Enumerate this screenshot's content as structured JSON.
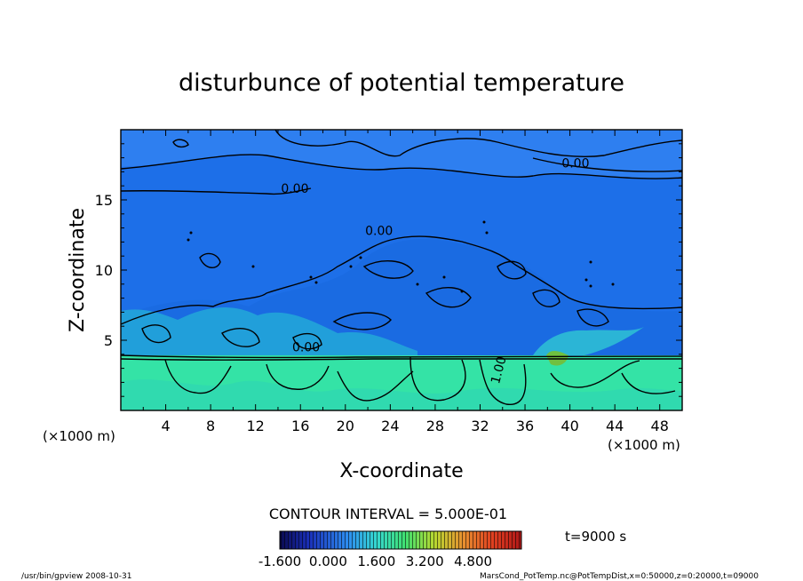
{
  "chart_data": {
    "type": "heatmap",
    "title": "disturbunce of potential temperature",
    "xlabel": "X-coordinate",
    "ylabel": "Z-coordinate",
    "x_unit": "(×1000 m)",
    "y_unit": "(×1000 m)",
    "xlim": [
      0,
      50
    ],
    "ylim": [
      0,
      20
    ],
    "x_ticks": [
      4,
      8,
      12,
      16,
      20,
      24,
      28,
      32,
      36,
      40,
      44,
      48
    ],
    "y_ticks": [
      5,
      10,
      15
    ],
    "contour_labels": [
      {
        "text": "0.00",
        "x": 15.5,
        "y": 15.5
      },
      {
        "text": "0.00",
        "x": 40.5,
        "y": 17.3
      },
      {
        "text": "0.00",
        "x": 23.0,
        "y": 12.5
      },
      {
        "text": "0.00",
        "x": 16.5,
        "y": 4.2
      },
      {
        "text": "1.00",
        "x": 34.0,
        "y": 2.8
      }
    ],
    "contour_interval_text": "CONTOUR INTERVAL = 5.000E-01",
    "colorbar": {
      "vmin": -1.6,
      "vmax": 6.4,
      "tick_labels": [
        "-1.600",
        "0.000",
        "1.600",
        "3.200",
        "4.800"
      ]
    },
    "time_label": "t=9000 s",
    "footer_left": "/usr/bin/gpview   2008-10-31",
    "footer_right": "MarsCond_PotTemp.nc@PotTempDist,x=0:50000,z=0:20000,t=09000"
  },
  "colors": {
    "upper_layer": "#1d6fe8",
    "top_band": "#2e7ff0",
    "lower_layer": "#34e3a6",
    "frame": "#000000"
  }
}
